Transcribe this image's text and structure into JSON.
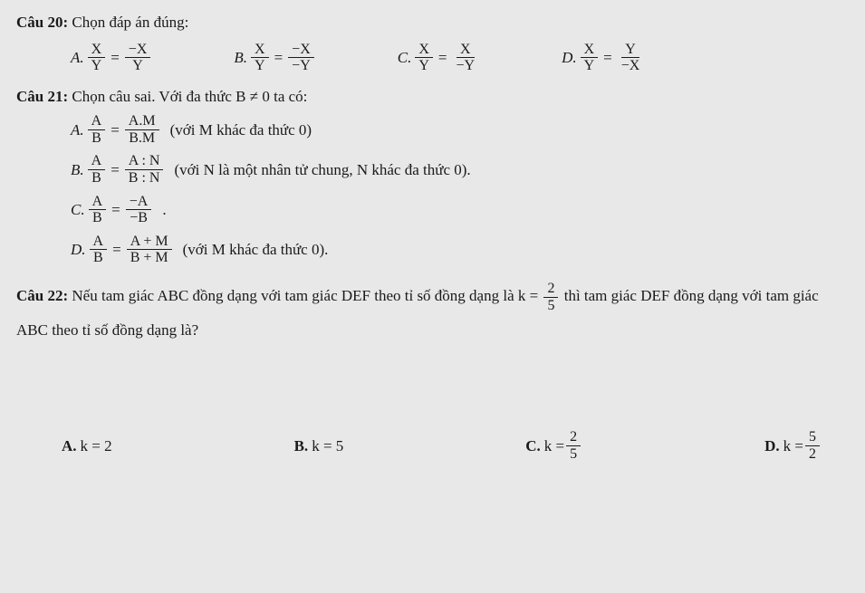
{
  "q20": {
    "title": "Câu 20:",
    "text": " Chọn đáp án đúng:",
    "opts": {
      "A": {
        "l": "A.",
        "n1": "X",
        "d1": "Y",
        "n2": "−X",
        "d2": "Y"
      },
      "B": {
        "l": "B.",
        "n1": "X",
        "d1": "Y",
        "n2": "−X",
        "d2": "−Y"
      },
      "C": {
        "l": "C.",
        "n1": "X",
        "d1": "Y",
        "n2": "X",
        "d2": "−Y"
      },
      "D": {
        "l": "D.",
        "n1": "X",
        "d1": "Y",
        "n2": "Y",
        "d2": "−X"
      }
    }
  },
  "q21": {
    "title": "Câu 21:",
    "text": " Chọn câu sai. Với đa thức B ≠ 0 ta có:",
    "opts": {
      "A": {
        "l": "A.",
        "n1": "A",
        "d1": "B",
        "n2": "A.M",
        "d2": "B.M",
        "note": "(với M khác đa thức 0)"
      },
      "B": {
        "l": "B.",
        "n1": "A",
        "d1": "B",
        "n2": "A : N",
        "d2": "B : N",
        "note": "(với N là một nhân tử chung, N khác đa thức 0)."
      },
      "C": {
        "l": "C.",
        "n1": "A",
        "d1": "B",
        "n2": "−A",
        "d2": "−B",
        "note": "."
      },
      "D": {
        "l": "D.",
        "n1": "A",
        "d1": "B",
        "n2": "A + M",
        "d2": "B + M",
        "note": "(với M khác đa thức 0)."
      }
    }
  },
  "q22": {
    "title": "Câu 22:",
    "text1": " Nếu tam giác ABC đồng dạng với tam giác DEF theo tỉ số đồng dạng là k = ",
    "kfrac": {
      "n": "2",
      "d": "5"
    },
    "text2": " thì tam giác DEF đồng dạng với tam giác ABC theo tỉ số đồng dạng là?",
    "opts": {
      "A": {
        "l": "A.",
        "t": "k = 2"
      },
      "B": {
        "l": "B.",
        "t": "k = 5"
      },
      "C": {
        "l": "C.",
        "t": "k = ",
        "n": "2",
        "d": "5"
      },
      "D": {
        "l": "D.",
        "t": "k = ",
        "n": "5",
        "d": "2"
      }
    }
  },
  "eq": "="
}
